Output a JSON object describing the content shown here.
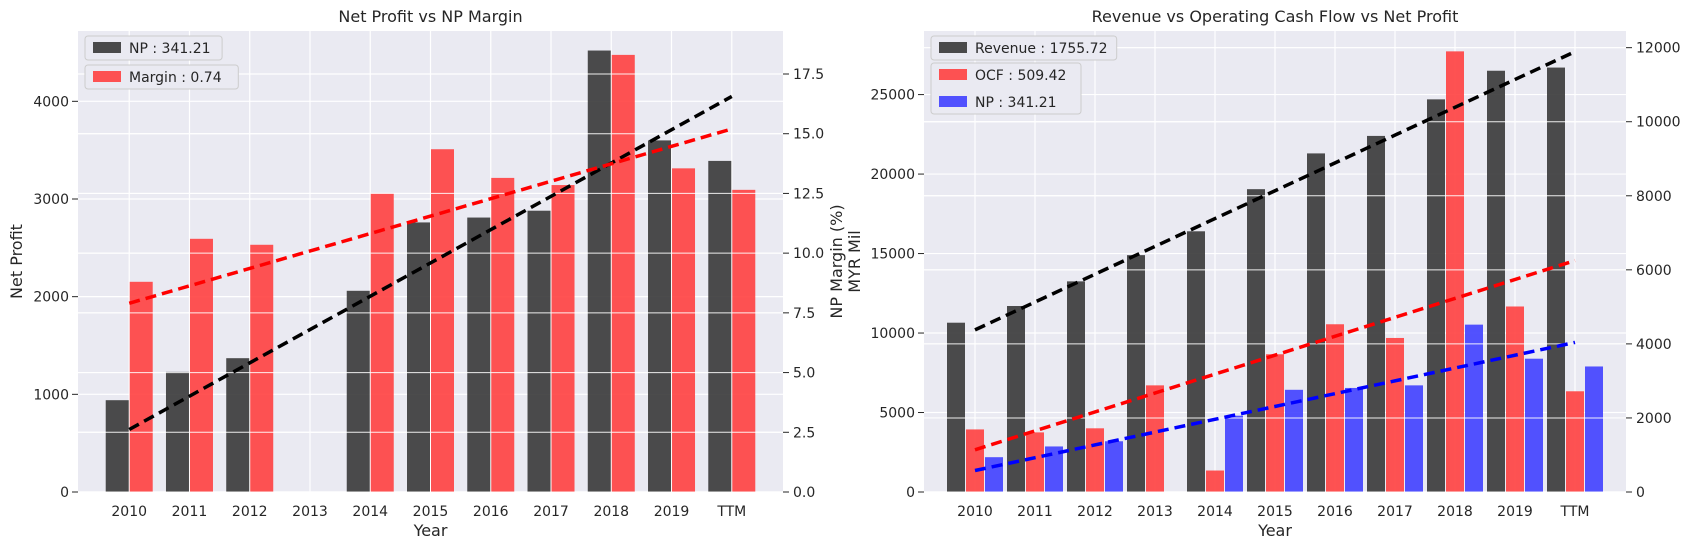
{
  "chart_data": [
    {
      "type": "bar",
      "title": "Net Profit vs NP Margin",
      "xlabel": "Year",
      "ylabel": "Net Profit",
      "y2label": "NP Margin (%)",
      "categories": [
        "2010",
        "2011",
        "2012",
        "2013",
        "2014",
        "2015",
        "2016",
        "2017",
        "2018",
        "2019",
        "TTM"
      ],
      "ylim": [
        0,
        4720
      ],
      "y2lim": [
        0,
        19.3
      ],
      "yticks": [
        0,
        1000,
        2000,
        3000,
        4000
      ],
      "y2ticks": [
        "0.0",
        "2.5",
        "5.0",
        "7.5",
        "10.0",
        "12.5",
        "15.0",
        "17.5"
      ],
      "grid": true,
      "legend_position": "top-left",
      "series": [
        {
          "name": "NP : 341.21",
          "axis": "left",
          "color": "#333333",
          "values": [
            940,
            1230,
            1370,
            0,
            2060,
            2760,
            2810,
            2880,
            4520,
            3600,
            3390
          ]
        },
        {
          "name": "Margin : 0.74",
          "axis": "right",
          "color": "#ff3b3b",
          "values": [
            8.8,
            10.6,
            10.35,
            0,
            12.5,
            14.35,
            13.15,
            12.85,
            18.3,
            13.55,
            12.65
          ]
        }
      ],
      "trendlines": [
        {
          "series": "NP : 341.21",
          "color": "#000000",
          "from": [
            0,
            640
          ],
          "to": [
            10,
            4050
          ]
        },
        {
          "series": "Margin : 0.74",
          "color": "#ff0000",
          "from": [
            0,
            7.9
          ],
          "to": [
            10,
            15.2
          ]
        }
      ]
    },
    {
      "type": "bar",
      "title": "Revenue vs Operating Cash Flow vs Net Profit",
      "xlabel": "Year",
      "ylabel": "MYR Mil",
      "categories": [
        "2010",
        "2011",
        "2012",
        "2013",
        "2014",
        "2015",
        "2016",
        "2017",
        "2018",
        "2019",
        "TTM"
      ],
      "ylim": [
        0,
        29000
      ],
      "y2lim": [
        0,
        12450
      ],
      "yticks": [
        0,
        5000,
        10000,
        15000,
        20000,
        25000
      ],
      "y2ticks": [
        0,
        2000,
        4000,
        6000,
        8000,
        10000,
        12000
      ],
      "grid": true,
      "legend_position": "top-left",
      "series": [
        {
          "name": "Revenue : 1755.72",
          "axis": "left",
          "color": "#333333",
          "values": [
            10650,
            11700,
            13250,
            14900,
            16400,
            19050,
            21300,
            22400,
            24700,
            26500,
            26700
          ]
        },
        {
          "name": "OCF : 509.42",
          "axis": "right",
          "color": "#ff3b3b",
          "values": [
            1690,
            1610,
            1720,
            2880,
            580,
            3720,
            4530,
            4160,
            11900,
            5010,
            2720
          ]
        },
        {
          "name": "NP : 341.21",
          "axis": "right",
          "color": "#3b3bff",
          "values": [
            940,
            1230,
            1370,
            0,
            2060,
            2760,
            2810,
            2880,
            4520,
            3600,
            3390
          ]
        }
      ],
      "trendlines": [
        {
          "series": "Revenue : 1755.72",
          "color": "#000000",
          "axis": "left",
          "from": [
            0,
            10200
          ],
          "to": [
            10,
            27700
          ]
        },
        {
          "series": "OCF : 509.42",
          "color": "#ff0000",
          "axis": "right",
          "from": [
            0,
            1140
          ],
          "to": [
            10,
            6250
          ]
        },
        {
          "series": "NP : 341.21",
          "color": "#0000ff",
          "axis": "right",
          "from": [
            0,
            580
          ],
          "to": [
            10,
            4040
          ]
        }
      ]
    }
  ]
}
